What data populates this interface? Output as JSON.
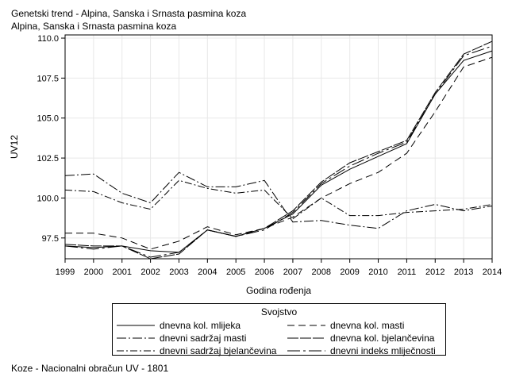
{
  "header": {
    "title": "Genetski trend - Alpina, Sanska i Srnasta pasmina koza",
    "subtitle": "Alpina, Sanska i Srnasta pasmina koza"
  },
  "footer": {
    "note": "Koze - Nacionalni obračun UV - 1801"
  },
  "legend": {
    "title": "Svojstvo"
  },
  "chart_data": {
    "type": "line",
    "xlabel": "Godina rođenja",
    "ylabel": "UV12",
    "x": [
      1999,
      2000,
      2001,
      2002,
      2003,
      2004,
      2005,
      2006,
      2007,
      2008,
      2009,
      2010,
      2011,
      2012,
      2013,
      2014
    ],
    "xlim": [
      1999,
      2014
    ],
    "ylim": [
      96.2,
      110.2
    ],
    "yticks": [
      97.5,
      100.0,
      102.5,
      105.0,
      107.5,
      110.0
    ],
    "ytick_labels": [
      "97.5",
      "100.0",
      "102.5",
      "105.0",
      "107.5",
      "110.0"
    ],
    "grid": true,
    "legend_position": "bottom",
    "series": [
      {
        "name": "dnevna kol. mlijeka",
        "dash": "",
        "values": [
          97.0,
          96.9,
          97.0,
          96.7,
          96.6,
          98.0,
          97.6,
          98.1,
          99.0,
          100.8,
          101.8,
          102.6,
          103.4,
          106.5,
          108.6,
          109.2
        ]
      },
      {
        "name": "dnevna kol. masti",
        "dash": "9,5",
        "values": [
          97.8,
          97.8,
          97.5,
          96.8,
          97.3,
          98.2,
          97.7,
          98.1,
          98.8,
          100.0,
          100.9,
          101.6,
          102.8,
          105.4,
          108.2,
          108.8
        ]
      },
      {
        "name": "dnevni sadržaj masti",
        "dash": "12,3,2,3",
        "values": [
          101.4,
          101.5,
          100.3,
          99.7,
          101.6,
          100.7,
          100.7,
          101.1,
          98.5,
          98.6,
          98.3,
          98.1,
          99.2,
          99.6,
          99.2,
          99.5
        ]
      },
      {
        "name": "dnevna kol. bjelančevina",
        "dash": "14,2",
        "values": [
          97.1,
          97.0,
          97.0,
          96.2,
          96.5,
          98.0,
          97.6,
          98.1,
          99.2,
          101.0,
          102.2,
          102.9,
          103.6,
          106.6,
          109.0,
          109.8
        ]
      },
      {
        "name": "dnevni sadržaj bjelančevina",
        "dash": "9,3,2,3",
        "values": [
          100.5,
          100.4,
          99.7,
          99.3,
          101.1,
          100.6,
          100.3,
          100.5,
          98.7,
          100.0,
          98.9,
          98.9,
          99.1,
          99.2,
          99.3,
          99.6
        ]
      },
      {
        "name": "dnevni indeks mliječnosti",
        "dash": "16,4,3,4",
        "values": [
          97.0,
          96.8,
          97.0,
          96.3,
          96.6,
          98.0,
          97.6,
          98.0,
          99.1,
          100.9,
          102.0,
          102.8,
          103.5,
          106.5,
          108.9,
          109.5
        ]
      }
    ]
  }
}
